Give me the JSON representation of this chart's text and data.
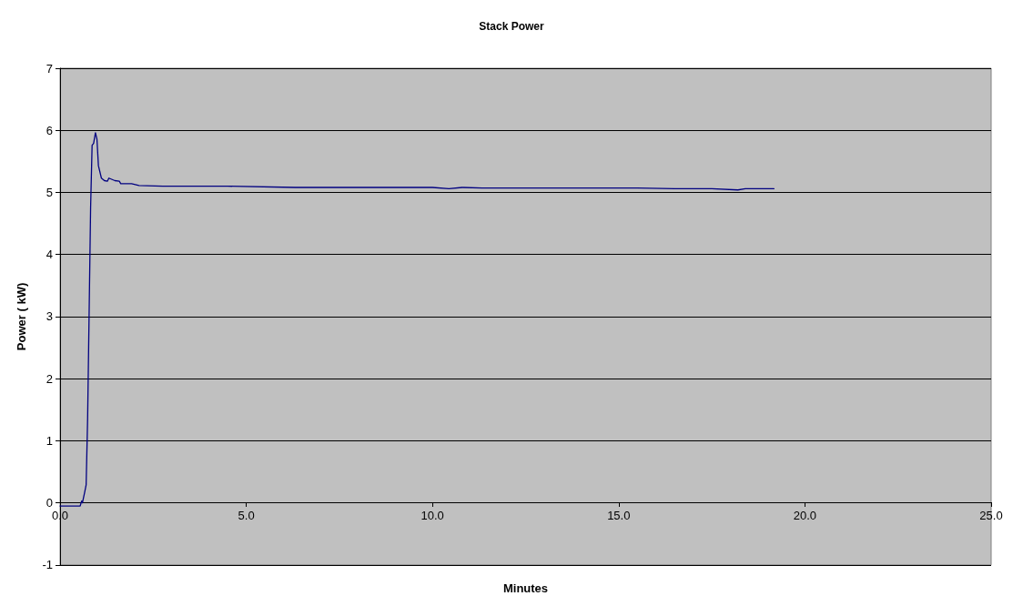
{
  "chart_data": {
    "type": "line",
    "title": "Stack Power",
    "xlabel": "Minutes",
    "ylabel": "Power ( kW)",
    "xlim": [
      0,
      25
    ],
    "xticks": [
      {
        "value": 0,
        "label": "0.0"
      },
      {
        "value": 5,
        "label": "5.0"
      },
      {
        "value": 10,
        "label": "10.0"
      },
      {
        "value": 15,
        "label": "15.0"
      },
      {
        "value": 20,
        "label": "20.0"
      },
      {
        "value": 25,
        "label": "25.0"
      }
    ],
    "ylim": [
      -1,
      7
    ],
    "yticks": [
      -1,
      0,
      1,
      2,
      3,
      4,
      5,
      6,
      7
    ],
    "grid": "y",
    "marker": "none",
    "line_style": "solid",
    "series": [
      {
        "color": "#000080",
        "x": [
          0,
          0.54,
          0.58,
          0.6,
          0.66,
          0.7,
          0.74,
          0.78,
          0.82,
          0.86,
          0.9,
          0.95,
          0.99,
          1.03,
          1.11,
          1.19,
          1.27,
          1.31,
          1.47,
          1.59,
          1.63,
          1.92,
          2.12,
          2.76,
          3.25,
          4.5,
          6.32,
          7.5,
          9.0,
          10.0,
          10.44,
          10.8,
          11.33,
          12.5,
          14.0,
          15.5,
          16.5,
          17.5,
          18.2,
          18.4,
          19.17
        ],
        "values": [
          -0.05,
          -0.05,
          0.03,
          0.0,
          0.17,
          0.29,
          1.36,
          3.05,
          4.75,
          5.76,
          5.79,
          5.96,
          5.86,
          5.43,
          5.23,
          5.19,
          5.18,
          5.23,
          5.19,
          5.18,
          5.14,
          5.14,
          5.11,
          5.1,
          5.1,
          5.1,
          5.08,
          5.08,
          5.08,
          5.08,
          5.06,
          5.08,
          5.07,
          5.07,
          5.07,
          5.07,
          5.06,
          5.06,
          5.04,
          5.06,
          5.06
        ]
      }
    ]
  }
}
